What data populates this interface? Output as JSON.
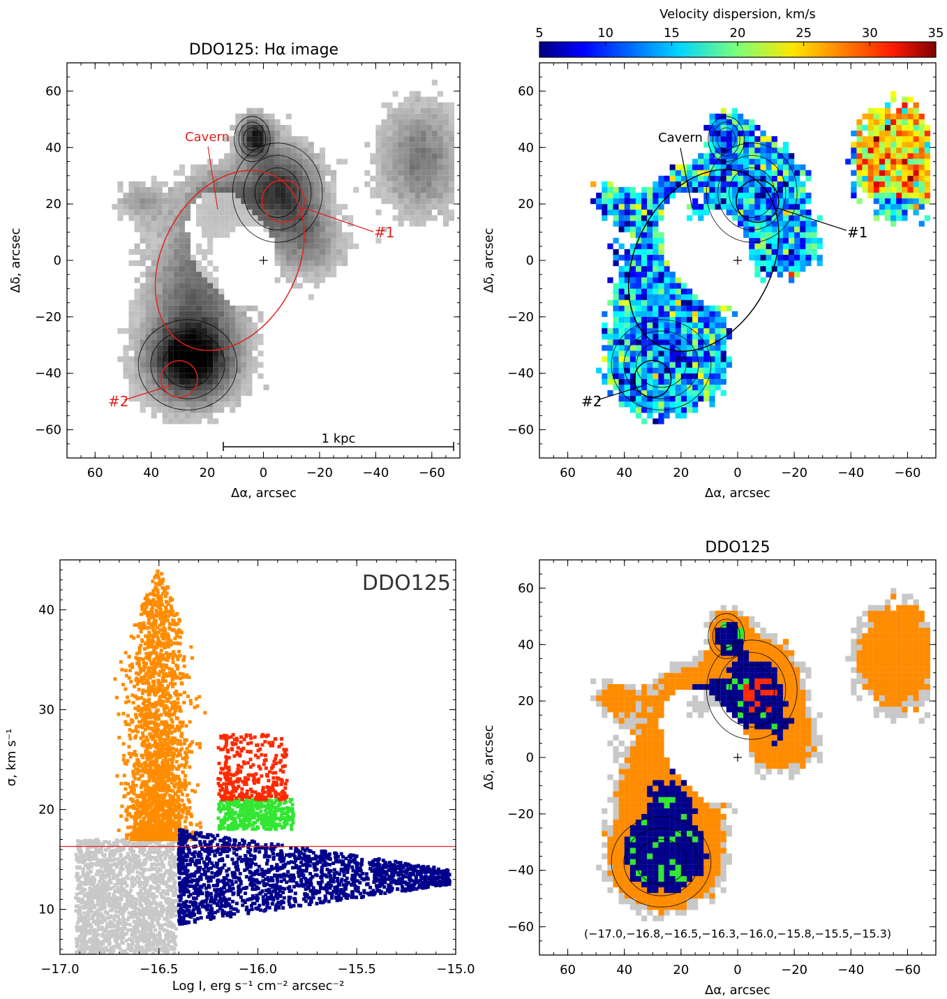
{
  "panels": {
    "halpha": {
      "title": "DDO125: Hα image",
      "xlabel": "Δα, arcsec",
      "ylabel": "Δδ, arcsec",
      "xticks": [
        60,
        40,
        20,
        0,
        -20,
        -40,
        -60
      ],
      "yticks": [
        60,
        40,
        20,
        0,
        -20,
        -40,
        -60
      ],
      "labels": {
        "cavern": "Cavern",
        "reg1": "#1",
        "reg2": "#2",
        "scale": "1 kpc"
      }
    },
    "dispersion": {
      "colorbar_title": "Velocity dispersion, km/s",
      "colorbar_ticks": [
        5,
        10,
        15,
        20,
        25,
        30,
        35
      ],
      "xlabel": "Δα, arcsec",
      "ylabel": "Δδ, arcsec",
      "xticks": [
        60,
        40,
        20,
        0,
        -20,
        -40,
        -60
      ],
      "yticks": [
        60,
        40,
        20,
        0,
        -20,
        -40,
        -60
      ],
      "labels": {
        "cavern": "Cavern",
        "reg1": "#1",
        "reg2": "#2"
      }
    },
    "diagnostic": {
      "legend_label": "DDO125",
      "xlabel": "Log I, erg s⁻¹ cm⁻² arcsec⁻²",
      "ylabel": "σ, km s⁻¹",
      "xticks": [
        -17.0,
        -16.5,
        -16.0,
        -15.5,
        -15.0
      ],
      "xtick_labels": [
        "−17.0",
        "−16.5",
        "−16.0",
        "−15.5",
        "−15.0"
      ],
      "yticks": [
        10,
        20,
        30,
        40
      ]
    },
    "classmap": {
      "title": "DDO125",
      "xlabel": "Δα, arcsec",
      "ylabel": "Δδ, arcsec",
      "xticks": [
        60,
        40,
        20,
        0,
        -20,
        -40,
        -60
      ],
      "yticks": [
        60,
        40,
        20,
        0,
        -20,
        -40,
        -60
      ],
      "contour_levels_label": "(−17.0,−16.8,−16.5,−16.3,−16.0,−15.8,−15.5,−15.3)"
    }
  },
  "chart_data": [
    {
      "type": "heatmap",
      "title": "DDO125: Hα image",
      "xlabel": "Δα, arcsec",
      "ylabel": "Δδ, arcsec",
      "xlim": [
        70,
        -70
      ],
      "ylim": [
        -70,
        70
      ],
      "colormap": "grayscale",
      "contour_levels": [
        -17.0,
        -16.8,
        -16.5,
        -16.3,
        -16.0,
        -15.8,
        -15.5,
        -15.3
      ],
      "center_marker": {
        "x": 0,
        "y": 0
      },
      "ellipses": [
        {
          "name": "Cavern",
          "cx": 12,
          "cy": 0,
          "rx": 34,
          "ry": 24,
          "angle_deg": 62,
          "color": "#e0201a"
        },
        {
          "name": "#1",
          "cx": -7,
          "cy": 21,
          "r": 7.5,
          "color": "#e0201a"
        },
        {
          "name": "#2",
          "cx": 30,
          "cy": -42,
          "r": 6.5,
          "color": "#e0201a"
        }
      ],
      "blobs": [
        {
          "x": 27,
          "y": -37,
          "peak": 1.0
        },
        {
          "x": -5,
          "y": 24,
          "peak": 0.82
        },
        {
          "x": 4,
          "y": 43,
          "peak": 0.85
        },
        {
          "x": 25,
          "y": -10,
          "peak": 0.55
        },
        {
          "x": -55,
          "y": 35,
          "peak": 0.5
        },
        {
          "x": 16,
          "y": 19,
          "peak": 0.45
        },
        {
          "x": -15,
          "y": 5,
          "peak": 0.4
        },
        {
          "x": 45,
          "y": 20,
          "peak": 0.3
        }
      ],
      "scale_bar": {
        "x_from": 15,
        "x_to": -67,
        "y": -65,
        "label": "1 kpc"
      }
    },
    {
      "type": "heatmap",
      "title": "",
      "colorbar_title": "Velocity dispersion, km/s",
      "colorbar_range": [
        5,
        35
      ],
      "colormap": "jet",
      "xlabel": "Δα, arcsec",
      "ylabel": "Δδ, arcsec",
      "xlim": [
        70,
        -70
      ],
      "ylim": [
        -70,
        70
      ],
      "ellipses": [
        {
          "name": "Cavern",
          "cx": 12,
          "cy": 0,
          "rx": 34,
          "ry": 24,
          "angle_deg": 62,
          "color": "#000000"
        },
        {
          "name": "#1",
          "cx": -7,
          "cy": 21,
          "r": 7.5,
          "color": "#000000"
        },
        {
          "name": "#2",
          "cx": 30,
          "cy": -42,
          "r": 6.5,
          "color": "#000000"
        }
      ]
    },
    {
      "type": "scatter",
      "title": "",
      "legend": "DDO125",
      "xlabel": "Log I, erg s⁻¹ cm⁻² arcsec⁻²",
      "ylabel": "σ, km s⁻¹",
      "xlim": [
        -17.0,
        -15.0
      ],
      "ylim": [
        5.5,
        45
      ],
      "hline": {
        "y": 16.3,
        "color": "#e0201a"
      },
      "groups": [
        {
          "color": "#c8c8c8",
          "x_range": [
            -16.92,
            -16.41
          ],
          "y_range": [
            5.5,
            17
          ],
          "count": 1700
        },
        {
          "color": "#ff8c00",
          "x_range": [
            -16.86,
            -16.2
          ],
          "y_range": [
            17,
            44.5
          ],
          "peak_x": -16.5,
          "count": 2100
        },
        {
          "color": "#00008b",
          "x_range": [
            -16.4,
            -15.03
          ],
          "y_range": [
            8.5,
            18
          ],
          "count": 1700
        },
        {
          "color": "#32e632",
          "x_range": [
            -16.2,
            -15.82
          ],
          "y_range": [
            18,
            21
          ],
          "count": 380
        },
        {
          "color": "#ff2a00",
          "x_range": [
            -16.2,
            -15.85
          ],
          "y_range": [
            21,
            27.5
          ],
          "count": 320
        }
      ]
    },
    {
      "type": "heatmap",
      "title": "DDO125",
      "xlabel": "Δα, arcsec",
      "ylabel": "Δδ, arcsec",
      "xlim": [
        70,
        -70
      ],
      "ylim": [
        -70,
        70
      ],
      "classes": [
        "#c8c8c8",
        "#ff8c00",
        "#00008b",
        "#32e632",
        "#ff2a00"
      ],
      "contour_levels": [
        -17.0,
        -16.8,
        -16.5,
        -16.3,
        -16.0,
        -15.8,
        -15.5,
        -15.3
      ]
    }
  ]
}
